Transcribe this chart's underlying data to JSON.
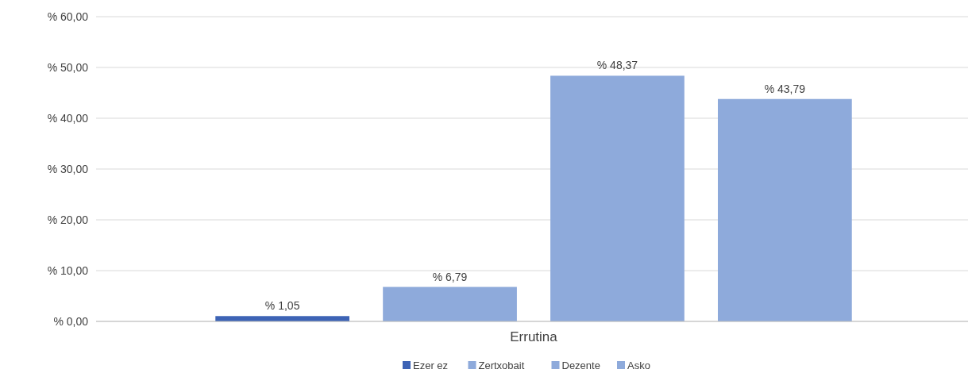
{
  "chart_data": {
    "type": "bar",
    "categories": [
      "Errutina"
    ],
    "series": [
      {
        "name": "Ezer ez",
        "color": "#3d63b5",
        "values": [
          1.05
        ],
        "value_labels": [
          "% 1,05"
        ]
      },
      {
        "name": "Zertxobait",
        "color": "#8eaadb",
        "values": [
          6.79
        ],
        "value_labels": [
          "% 6,79"
        ]
      },
      {
        "name": "Dezente",
        "color": "#8eaadb",
        "values": [
          48.37
        ],
        "value_labels": [
          "% 48,37"
        ]
      },
      {
        "name": "Asko",
        "color": "#8eaadb",
        "values": [
          43.79
        ],
        "value_labels": [
          "% 43,79"
        ]
      }
    ],
    "ylim": [
      0,
      60
    ],
    "yticks": [
      {
        "value": 0,
        "label": "% 0,00"
      },
      {
        "value": 10,
        "label": "% 10,00"
      },
      {
        "value": 20,
        "label": "% 20,00"
      },
      {
        "value": 30,
        "label": "% 30,00"
      },
      {
        "value": 40,
        "label": "% 40,00"
      },
      {
        "value": 50,
        "label": "% 50,00"
      },
      {
        "value": 60,
        "label": "% 60,00"
      }
    ],
    "grid": "y",
    "legend": "bottom"
  }
}
